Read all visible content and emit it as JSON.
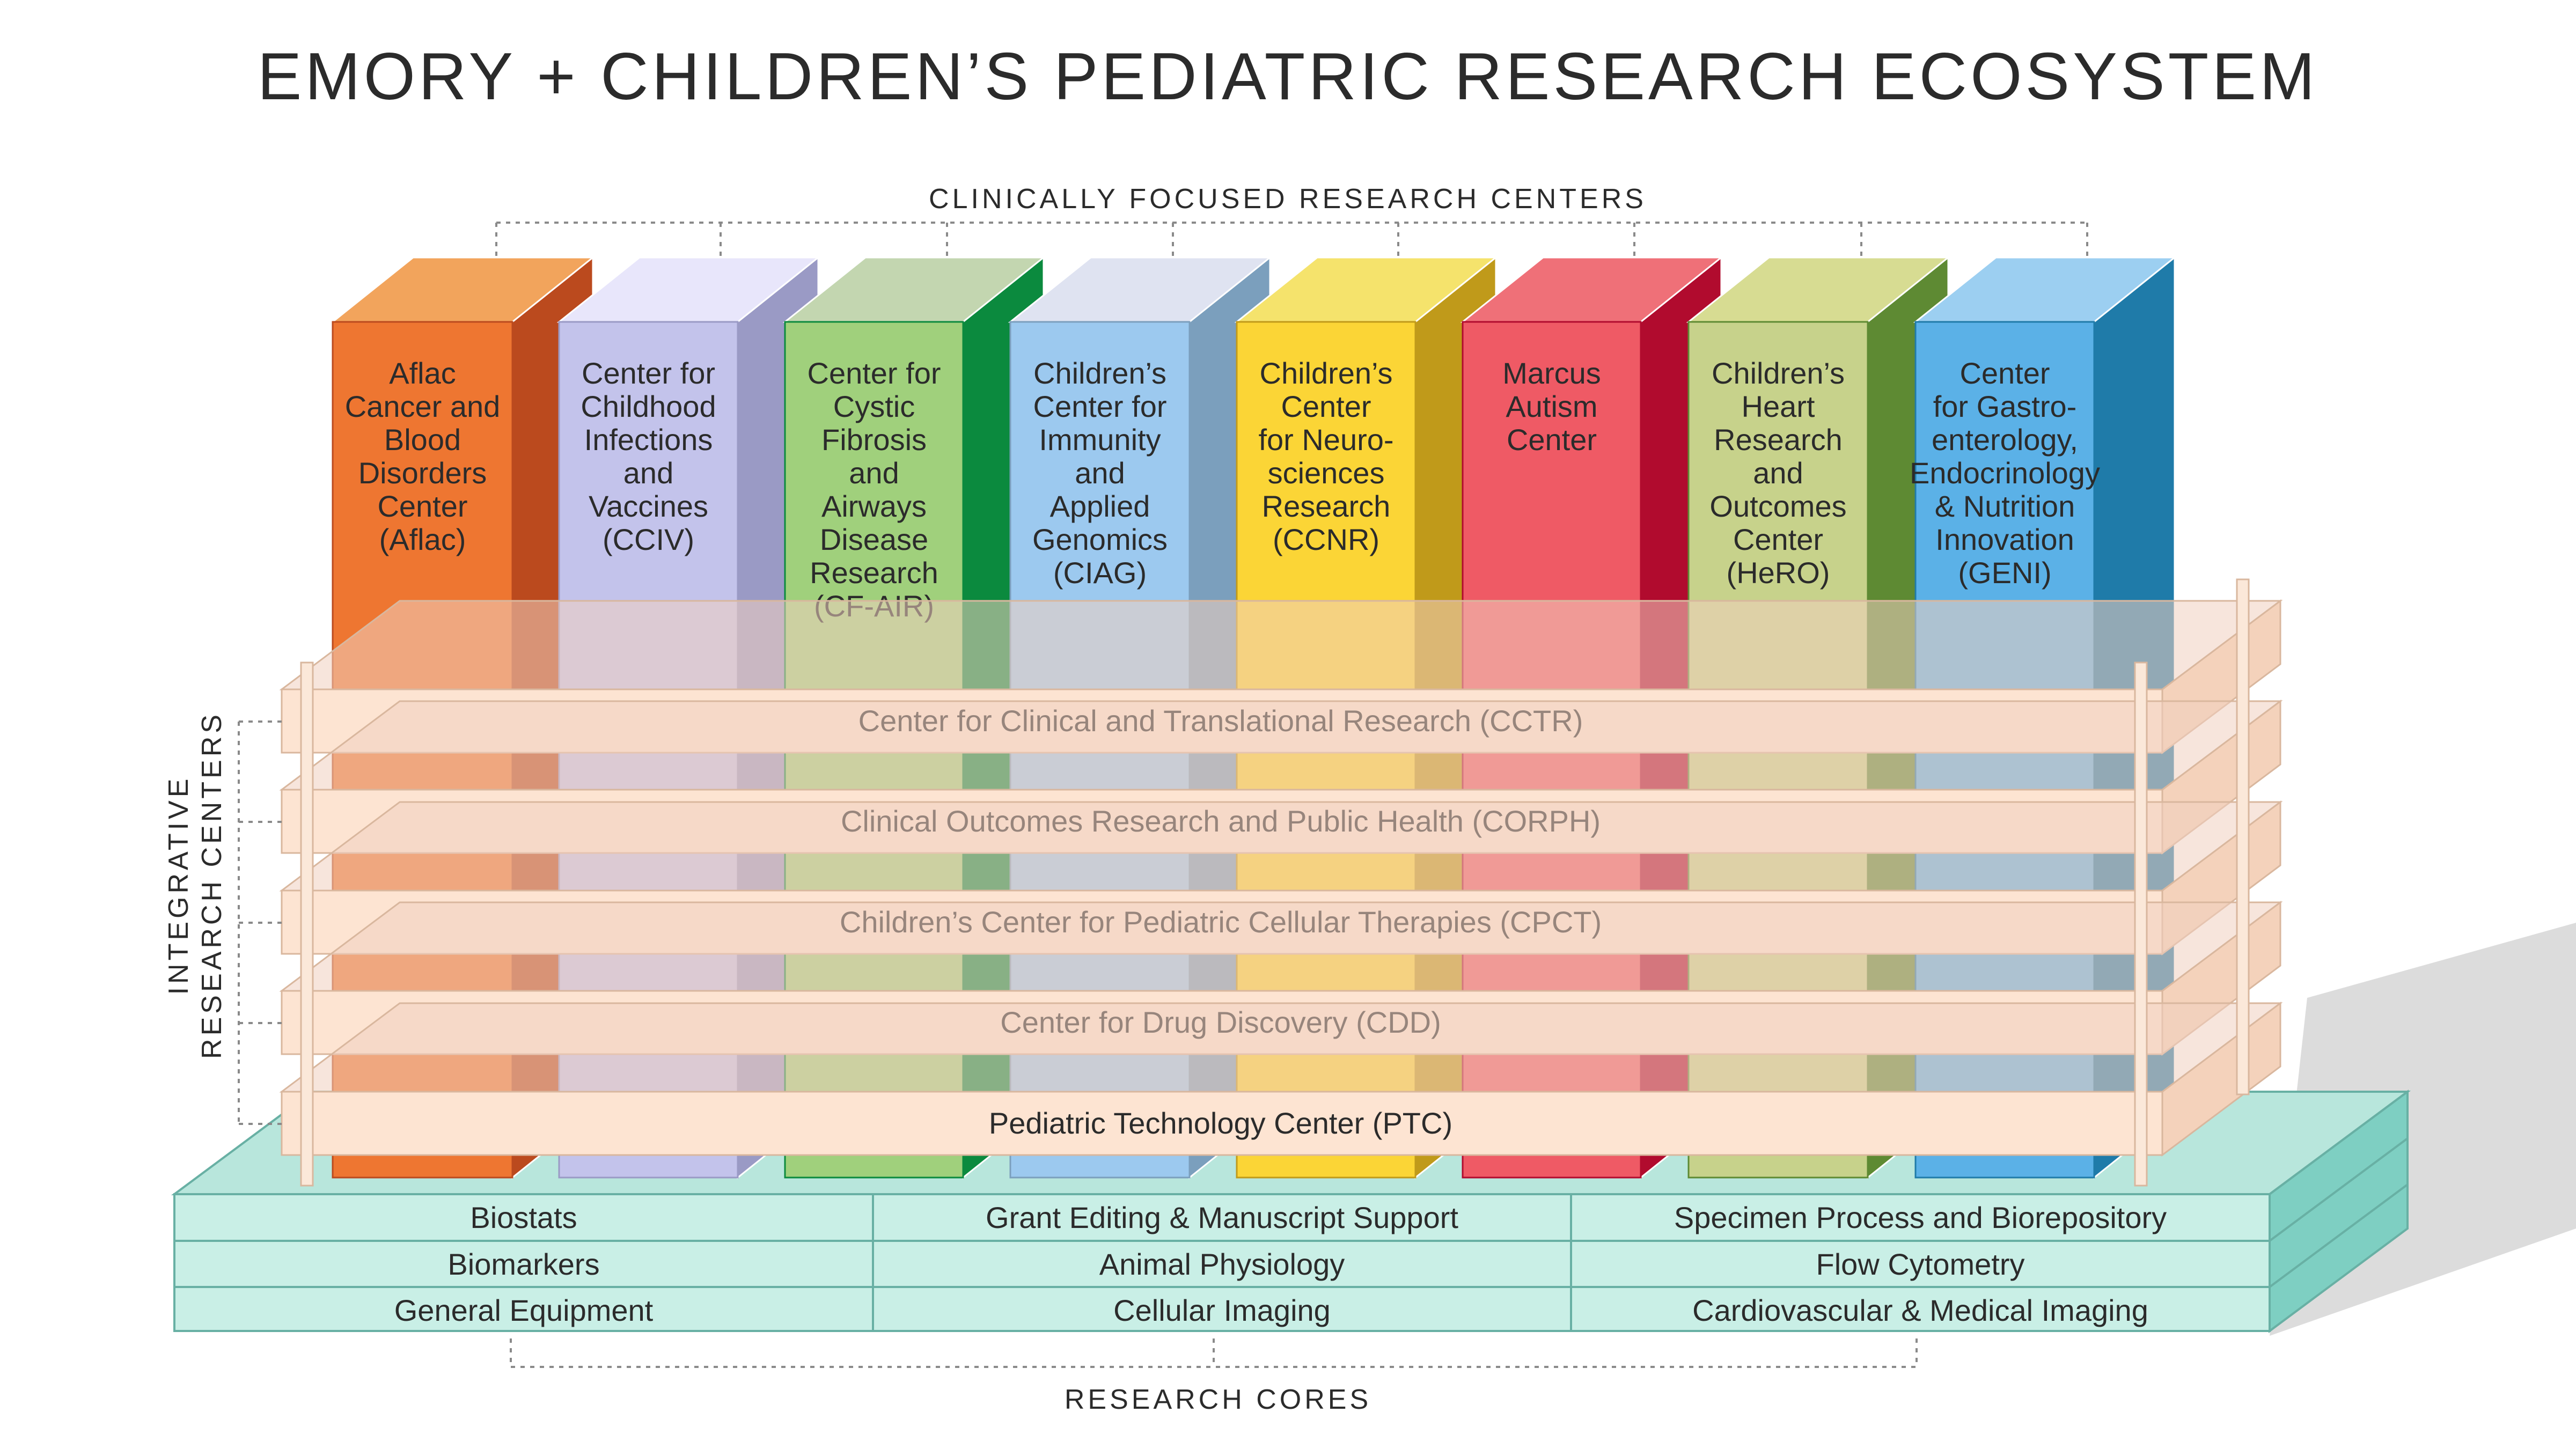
{
  "title": "EMORY + CHILDREN’S PEDIATRIC RESEARCH ECOSYSTEM",
  "clinical_label": "CLINICALLY FOCUSED RESEARCH CENTERS",
  "integrative_label_line1": "INTEGRATIVE",
  "integrative_label_line2": "RESEARCH CENTERS",
  "cores_label": "RESEARCH CORES",
  "clinical_centers": [
    {
      "lines": [
        "Aflac",
        "Cancer and",
        "Blood",
        "Disorders",
        "Center",
        "(Aflac)"
      ],
      "front": "#ee7631",
      "side": "#bb4a1e",
      "top": "#f2a45c"
    },
    {
      "lines": [
        "Center for",
        "Childhood",
        "Infections",
        "and",
        "Vaccines",
        "(CCIV)"
      ],
      "front": "#c3c3eb",
      "side": "#9a9ac5",
      "top": "#e8e6fb"
    },
    {
      "lines": [
        "Center for",
        "Cystic",
        "Fibrosis",
        "and",
        "Airways",
        "Disease",
        "Research",
        "(CF-AIR)"
      ],
      "front": "#a0d07c",
      "side": "#0b8a3e",
      "top": "#c3d6b0"
    },
    {
      "lines": [
        "Children’s",
        "Center for",
        "Immunity",
        "and",
        "Applied",
        "Genomics",
        "(CIAG)"
      ],
      "front": "#9cc9ef",
      "side": "#7b9fbd",
      "top": "#dfe3f1"
    },
    {
      "lines": [
        "Children’s",
        "Center",
        "for Neuro-",
        "sciences",
        "Research",
        "(CCNR)"
      ],
      "front": "#fbd536",
      "side": "#c09a1a",
      "top": "#f5e36c"
    },
    {
      "lines": [
        "Marcus",
        "Autism",
        "Center"
      ],
      "front": "#ef5a65",
      "side": "#b10b2e",
      "top": "#ef7078"
    },
    {
      "lines": [
        "Children’s",
        "Heart",
        "Research",
        "and",
        "Outcomes",
        "Center",
        "(HeRO)"
      ],
      "front": "#c7d28b",
      "side": "#5e8a33",
      "top": "#d7dc92"
    },
    {
      "lines": [
        "Center",
        "for Gastro-",
        "enterology,",
        "Endocrinology",
        "& Nutrition",
        "Innovation",
        "(GENI)"
      ],
      "front": "#5bb1e7",
      "side": "#1f7ba9",
      "top": "#9ccff1"
    }
  ],
  "integrative_centers": [
    "Center for Clinical and Translational Research (CCTR)",
    "Clinical Outcomes Research and Public Health (CORPH)",
    "Children’s Center for Pediatric Cellular Therapies (CPCT)",
    "Center for Drug Discovery (CDD)",
    "Pediatric Technology Center (PTC)"
  ],
  "research_cores": [
    [
      "Biostats",
      "Grant Editing & Manuscript Support",
      "Specimen Process and Biorepository"
    ],
    [
      "Biomarkers",
      "Animal Physiology",
      "Flow Cytometry"
    ],
    [
      "General Equipment",
      "Cellular Imaging",
      "Cardiovascular & Medical Imaging"
    ]
  ],
  "colors": {
    "layer_front": "#fde4d2",
    "layer_top": "#f1cfbf",
    "layer_side": "#f4d2bb",
    "layer_stroke": "#d9b79e",
    "core_front": "#c9efe6",
    "core_top": "#b8e6dc",
    "core_side": "#7ecfc2",
    "core_stroke": "#68b0a4",
    "shadow": "#dcdcdc"
  }
}
